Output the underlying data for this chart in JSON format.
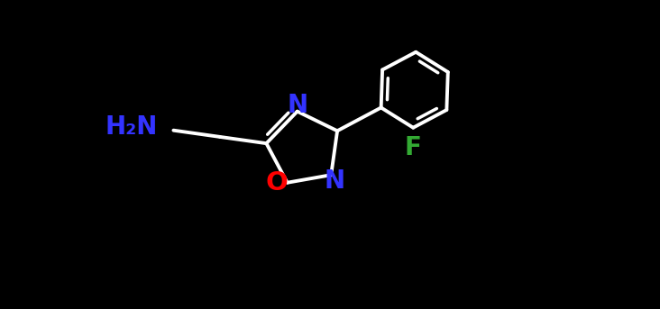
{
  "background_color": "#000000",
  "atom_colors": {
    "N": "#3333ff",
    "O": "#ff0000",
    "F": "#33aa33",
    "C": "#ffffff",
    "H2N": "#3333ff"
  },
  "bond_color": "#ffffff",
  "bond_width": 2.8,
  "figsize": [
    7.32,
    3.43
  ],
  "dpi": 100,
  "xlim": [
    0,
    7.32
  ],
  "ylim": [
    0,
    3.43
  ],
  "font_size": 18
}
